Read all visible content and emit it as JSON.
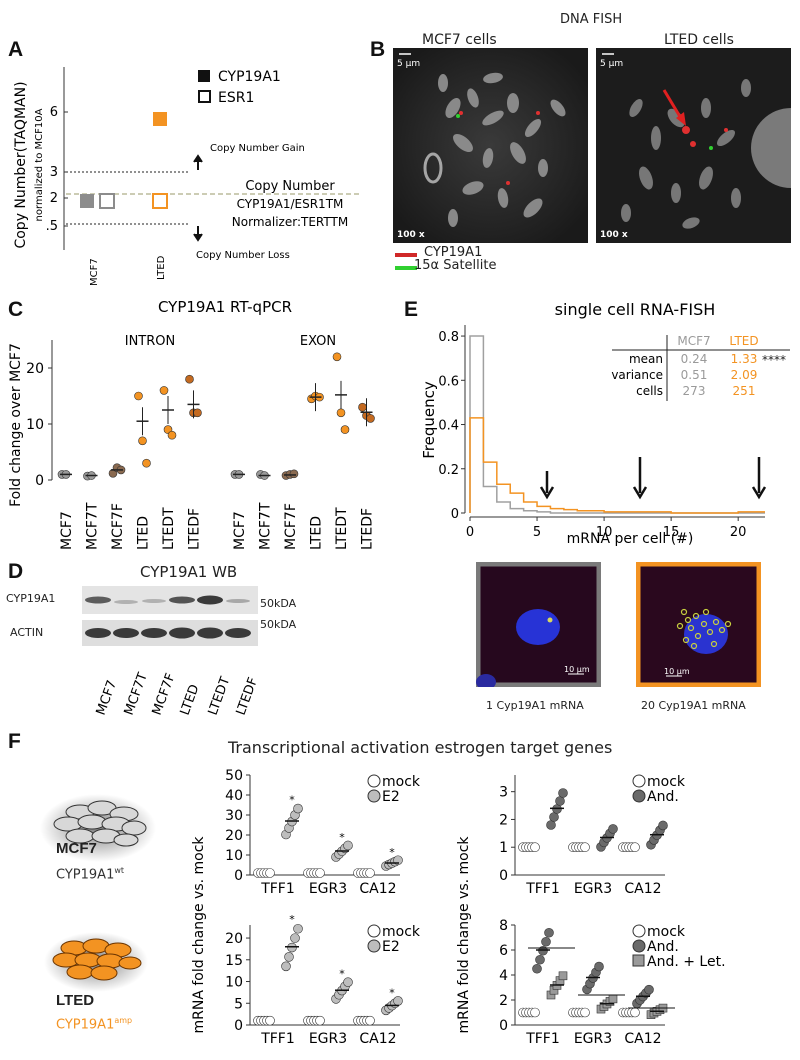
{
  "panel_letters": {
    "a": "A",
    "b": "B",
    "c": "C",
    "d": "D",
    "e": "E",
    "f": "F"
  },
  "panelA": {
    "y_label": "Copy Number(TAQMAN)",
    "y_sublabel": "normalized to MCF10A",
    "ticks": [
      "6",
      "3",
      "2",
      ".5"
    ],
    "legend": [
      "CYP19A1",
      "ESR1"
    ],
    "gain_label": "Copy Number Gain",
    "loss_label": "Copy Number Loss",
    "note": [
      "Copy Number",
      "CYP19A1/ESR1TM",
      "Normalizer:TERTTM"
    ],
    "categories": [
      "MCF7",
      "LTED"
    ],
    "colors": {
      "mcf7": "#8c8c8c",
      "lted": "#f39322"
    }
  },
  "panelB": {
    "title": "DNA FISH",
    "left_title": "MCF7  cells",
    "right_title": "LTED cells",
    "scale": "5 µm",
    "mag": "100 x",
    "legend": [
      "CYP19A1",
      "15α Satellite"
    ]
  },
  "panelC": {
    "title": "CYP19A1 RT-qPCR",
    "intron": "INTRON",
    "exon": "EXON",
    "ylabel": "Fold change over MCF7",
    "yticks": [
      "0",
      "10",
      "20"
    ],
    "categories": [
      "MCF7",
      "MCF7T",
      "MCF7F",
      "LTED",
      "LTEDT",
      "LTEDF",
      "MCF7",
      "MCF7T",
      "MCF7F",
      "LTED",
      "LTEDT",
      "LTEDF"
    ]
  },
  "panelD": {
    "title": "CYP19A1 WB",
    "rows": [
      "CYP19A1",
      "ACTIN"
    ],
    "markers": [
      "50kDA",
      "50kDA"
    ],
    "lanes": [
      "MCF7",
      "MCF7T",
      "MCF7F",
      "LTED",
      "LTEDT",
      "LTEDF"
    ]
  },
  "panelE": {
    "title": "single cell RNA-FISH",
    "xlabel": "mRNA per cell (#)",
    "ylabel": "Frequency",
    "table": {
      "head": [
        "MCF7",
        "LTED"
      ],
      "rows": [
        [
          "mean",
          "0.24",
          "1.33"
        ],
        [
          "variance",
          "0.51",
          "2.09"
        ],
        [
          "cells",
          "273",
          "251"
        ]
      ],
      "sig": "****"
    },
    "cap_left": "1 Cyp19A1 mRNA",
    "cap_right": "20 Cyp19A1 mRNA",
    "scale": "10 µm"
  },
  "panelF": {
    "title": "Transcriptional activation estrogen target genes",
    "mcf7_label": "MCF7",
    "mcf7_sub": "CYP19A1",
    "mcf7_sup": "wt",
    "lted_label": "LTED",
    "lted_sub": "CYP19A1",
    "lted_sup": "amp",
    "ylabel": "mRNA fold change vs. mock",
    "genes": [
      "TFF1",
      "EGR3",
      "CA12"
    ],
    "legend_e2": [
      "mock",
      "E2"
    ],
    "legend_and": [
      "mock",
      "And."
    ],
    "legend_and_let": [
      "mock",
      "And.",
      "And. + Let."
    ],
    "ticks_tl": [
      "0",
      "10",
      "20",
      "30",
      "40",
      "50"
    ],
    "ticks_tr": [
      "0",
      "1",
      "2",
      "3"
    ],
    "ticks_bl": [
      "0",
      "5",
      "10",
      "15",
      "20"
    ],
    "ticks_br": [
      "0",
      "2",
      "4",
      "6",
      "8"
    ]
  },
  "chart_data": [
    {
      "type": "scatter",
      "title": "",
      "categories": [
        "MCF7",
        "LTED"
      ],
      "series": [
        {
          "name": "CYP19A1",
          "values": [
            1.2,
            5.6
          ]
        },
        {
          "name": "ESR1",
          "values": [
            1.2,
            1.2
          ]
        }
      ]
    },
    {
      "type": "scatter",
      "title": "CYP19A1 RT-qPCR",
      "categories": [
        "MCF7",
        "MCF7T",
        "MCF7F",
        "LTED",
        "LTEDT",
        "LTEDF",
        "MCF7",
        "MCF7T",
        "MCF7F",
        "LTED",
        "LTEDT",
        "LTEDF"
      ],
      "series": [
        {
          "name": "mean",
          "values": [
            1,
            0.8,
            1.8,
            10.5,
            12.5,
            13.5,
            1,
            0.8,
            0.9,
            14.8,
            15.2,
            12.1
          ]
        }
      ]
    },
    {
      "type": "line",
      "title": "single cell RNA-FISH",
      "xlabel": "mRNA per cell (#)",
      "ylabel": "Frequency",
      "x": [
        0,
        1,
        2,
        3,
        4,
        5,
        6,
        7,
        8,
        9,
        10,
        11,
        12,
        13,
        14,
        15,
        16,
        17,
        18,
        19,
        20,
        21
      ],
      "series": [
        {
          "name": "MCF7",
          "values": [
            0.8,
            0.12,
            0.05,
            0.02,
            0.01,
            0.005,
            0,
            0,
            0,
            0,
            0,
            0,
            0,
            0,
            0,
            0,
            0,
            0,
            0,
            0,
            0,
            0
          ]
        },
        {
          "name": "LTED",
          "values": [
            0.43,
            0.23,
            0.13,
            0.09,
            0.05,
            0.03,
            0.02,
            0.015,
            0.01,
            0.01,
            0.005,
            0.005,
            0.005,
            0.005,
            0.005,
            0,
            0,
            0,
            0,
            0,
            0.005,
            0.005
          ]
        }
      ]
    },
    {
      "type": "scatter",
      "categories": [
        "TFF1",
        "EGR3",
        "CA12"
      ],
      "series": [
        {
          "name": "mock",
          "values": [
            1,
            1,
            1
          ]
        },
        {
          "name": "E2",
          "values": [
            27,
            12,
            6
          ]
        }
      ]
    },
    {
      "type": "scatter",
      "categories": [
        "TFF1",
        "EGR3",
        "CA12"
      ],
      "series": [
        {
          "name": "mock",
          "values": [
            1,
            1,
            1
          ]
        },
        {
          "name": "And.",
          "values": [
            2.4,
            1.35,
            1.45
          ]
        }
      ]
    },
    {
      "type": "scatter",
      "categories": [
        "TFF1",
        "EGR3",
        "CA12"
      ],
      "series": [
        {
          "name": "mock",
          "values": [
            1,
            1,
            1
          ]
        },
        {
          "name": "E2",
          "values": [
            18,
            8,
            4.5
          ]
        }
      ]
    },
    {
      "type": "scatter",
      "categories": [
        "TFF1",
        "EGR3",
        "CA12"
      ],
      "series": [
        {
          "name": "mock",
          "values": [
            1,
            1,
            1
          ]
        },
        {
          "name": "And.",
          "values": [
            6,
            3.8,
            2.3
          ]
        },
        {
          "name": "And. + Let.",
          "values": [
            3.2,
            1.7,
            1.1
          ]
        }
      ]
    }
  ]
}
